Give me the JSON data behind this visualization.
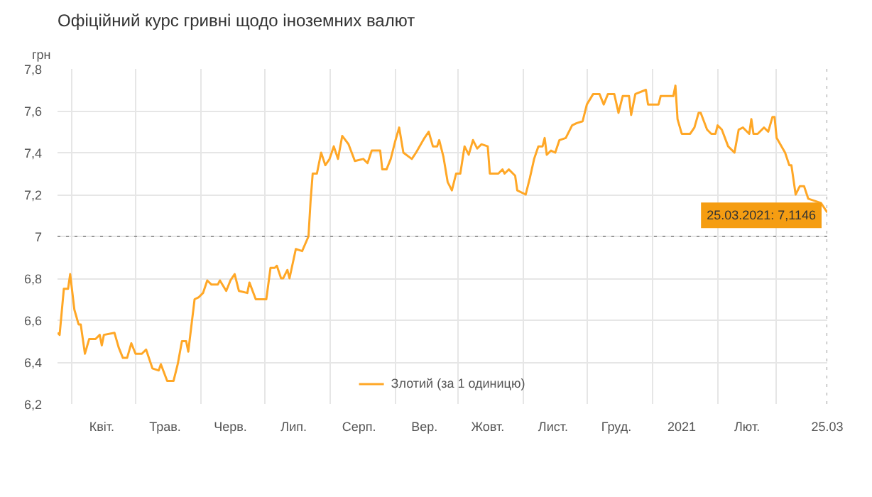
{
  "chart_data": {
    "type": "line",
    "title": "Офіційний курс гривні щодо іноземних валют",
    "ylabel": "грн",
    "x": [
      "2020-03-25",
      "2020-03-26",
      "2020-03-28",
      "2020-03-30",
      "2020-03-31",
      "2020-04-02",
      "2020-04-04",
      "2020-04-05",
      "2020-04-07",
      "2020-04-09",
      "2020-04-12",
      "2020-04-14",
      "2020-04-15",
      "2020-04-16",
      "2020-04-21",
      "2020-04-23",
      "2020-04-25",
      "2020-04-27",
      "2020-04-29",
      "2020-05-01",
      "2020-05-04",
      "2020-05-06",
      "2020-05-09",
      "2020-05-12",
      "2020-05-13",
      "2020-05-16",
      "2020-05-19",
      "2020-05-21",
      "2020-05-23",
      "2020-05-25",
      "2020-05-26",
      "2020-05-29",
      "2020-05-31",
      "2020-06-02",
      "2020-06-04",
      "2020-06-06",
      "2020-06-09",
      "2020-06-10",
      "2020-06-13",
      "2020-06-15",
      "2020-06-17",
      "2020-06-19",
      "2020-06-23",
      "2020-06-24",
      "2020-06-27",
      "2020-07-02",
      "2020-07-04",
      "2020-07-06",
      "2020-07-07",
      "2020-07-09",
      "2020-07-10",
      "2020-07-12",
      "2020-07-13",
      "2020-07-16",
      "2020-07-19",
      "2020-07-22",
      "2020-07-23",
      "2020-07-24",
      "2020-07-26",
      "2020-07-28",
      "2020-07-30",
      "2020-08-01",
      "2020-08-03",
      "2020-08-05",
      "2020-08-07",
      "2020-08-10",
      "2020-08-13",
      "2020-08-17",
      "2020-08-19",
      "2020-08-21",
      "2020-08-25",
      "2020-08-26",
      "2020-08-28",
      "2020-08-30",
      "2020-09-01",
      "2020-09-03",
      "2020-09-05",
      "2020-09-09",
      "2020-09-11",
      "2020-09-15",
      "2020-09-17",
      "2020-09-19",
      "2020-09-21",
      "2020-09-22",
      "2020-09-24",
      "2020-09-26",
      "2020-09-28",
      "2020-09-30",
      "2020-10-02",
      "2020-10-04",
      "2020-10-06",
      "2020-10-08",
      "2020-10-10",
      "2020-10-12",
      "2020-10-15",
      "2020-10-16",
      "2020-10-20",
      "2020-10-22",
      "2020-10-23",
      "2020-10-25",
      "2020-10-28",
      "2020-10-29",
      "2020-11-02",
      "2020-11-04",
      "2020-11-06",
      "2020-11-08",
      "2020-11-10",
      "2020-11-11",
      "2020-11-12",
      "2020-11-14",
      "2020-11-16",
      "2020-11-18",
      "2020-11-21",
      "2020-11-24",
      "2020-11-26",
      "2020-11-29",
      "2020-12-01",
      "2020-12-04",
      "2020-12-07",
      "2020-12-09",
      "2020-12-11",
      "2020-12-14",
      "2020-12-16",
      "2020-12-18",
      "2020-12-21",
      "2020-12-22",
      "2020-12-24",
      "2020-12-29",
      "2020-12-30",
      "2021-01-04",
      "2021-01-05",
      "2021-01-11",
      "2021-01-12",
      "2021-01-13",
      "2021-01-15",
      "2021-01-19",
      "2021-01-21",
      "2021-01-23",
      "2021-01-24",
      "2021-01-27",
      "2021-01-29",
      "2021-01-31",
      "2021-02-01",
      "2021-02-03",
      "2021-02-06",
      "2021-02-09",
      "2021-02-11",
      "2021-02-13",
      "2021-02-16",
      "2021-02-17",
      "2021-02-18",
      "2021-02-20",
      "2021-02-23",
      "2021-02-25",
      "2021-02-27",
      "2021-02-28",
      "2021-03-01",
      "2021-03-05",
      "2021-03-07",
      "2021-03-08",
      "2021-03-10",
      "2021-03-12",
      "2021-03-14",
      "2021-03-16",
      "2021-03-19",
      "2021-03-22",
      "2021-03-25"
    ],
    "series": [
      {
        "name": "Злотий (за 1 одиницю)",
        "color": "#ffa726",
        "values": [
          6.54,
          6.53,
          6.75,
          6.75,
          6.82,
          6.65,
          6.58,
          6.58,
          6.44,
          6.51,
          6.51,
          6.53,
          6.48,
          6.53,
          6.54,
          6.47,
          6.42,
          6.42,
          6.49,
          6.44,
          6.44,
          6.46,
          6.37,
          6.36,
          6.39,
          6.31,
          6.31,
          6.39,
          6.5,
          6.5,
          6.45,
          6.7,
          6.71,
          6.73,
          6.79,
          6.77,
          6.77,
          6.79,
          6.74,
          6.79,
          6.82,
          6.74,
          6.73,
          6.78,
          6.7,
          6.7,
          6.85,
          6.85,
          6.86,
          6.8,
          6.8,
          6.84,
          6.8,
          6.94,
          6.93,
          7.0,
          7.17,
          7.3,
          7.3,
          7.4,
          7.34,
          7.37,
          7.43,
          7.37,
          7.48,
          7.44,
          7.36,
          7.37,
          7.35,
          7.41,
          7.41,
          7.32,
          7.32,
          7.37,
          7.45,
          7.52,
          7.4,
          7.37,
          7.4,
          7.47,
          7.5,
          7.43,
          7.43,
          7.46,
          7.38,
          7.26,
          7.22,
          7.3,
          7.3,
          7.43,
          7.39,
          7.46,
          7.42,
          7.44,
          7.43,
          7.3,
          7.3,
          7.32,
          7.3,
          7.32,
          7.29,
          7.22,
          7.2,
          7.28,
          7.37,
          7.43,
          7.43,
          7.47,
          7.39,
          7.41,
          7.4,
          7.46,
          7.47,
          7.53,
          7.54,
          7.55,
          7.63,
          7.68,
          7.68,
          7.63,
          7.68,
          7.68,
          7.59,
          7.67,
          7.67,
          7.58,
          7.68,
          7.7,
          7.63,
          7.63,
          7.67,
          7.67,
          7.72,
          7.56,
          7.49,
          7.49,
          7.52,
          7.59,
          7.59,
          7.51,
          7.49,
          7.49,
          7.53,
          7.51,
          7.43,
          7.4,
          7.51,
          7.52,
          7.49,
          7.56,
          7.49,
          7.49,
          7.52,
          7.5,
          7.57,
          7.57,
          7.47,
          7.4,
          7.34,
          7.34,
          7.2,
          7.24,
          7.24,
          7.18,
          7.17,
          7.16,
          7.1146
        ]
      }
    ],
    "xlim": [
      "2020-03-25",
      "2021-03-25"
    ],
    "xticks": [
      {
        "value": "2020-04-01",
        "label": null
      },
      {
        "value": "2020-04-15",
        "label": "Квіт."
      },
      {
        "value": "2020-05-01",
        "label": null
      },
      {
        "value": "2020-05-15",
        "label": "Трав."
      },
      {
        "value": "2020-06-01",
        "label": null
      },
      {
        "value": "2020-06-15",
        "label": "Черв."
      },
      {
        "value": "2020-07-01",
        "label": null
      },
      {
        "value": "2020-07-15",
        "label": "Лип."
      },
      {
        "value": "2020-08-01",
        "label": null
      },
      {
        "value": "2020-08-15",
        "label": "Серп."
      },
      {
        "value": "2020-09-01",
        "label": null
      },
      {
        "value": "2020-09-15",
        "label": "Вер."
      },
      {
        "value": "2020-10-01",
        "label": null
      },
      {
        "value": "2020-10-15",
        "label": "Жовт."
      },
      {
        "value": "2020-11-01",
        "label": null
      },
      {
        "value": "2020-11-15",
        "label": "Лист."
      },
      {
        "value": "2020-12-01",
        "label": null
      },
      {
        "value": "2020-12-15",
        "label": "Груд."
      },
      {
        "value": "2021-01-01",
        "label": null
      },
      {
        "value": "2021-01-15",
        "label": "2021"
      },
      {
        "value": "2021-02-01",
        "label": null
      },
      {
        "value": "2021-02-15",
        "label": "Лют."
      },
      {
        "value": "2021-03-01",
        "label": null
      },
      {
        "value": "2021-03-25",
        "label": "25.03"
      }
    ],
    "ylim": [
      6.2,
      7.8
    ],
    "yticks": [
      {
        "value": 6.2,
        "label": "6,2"
      },
      {
        "value": 6.4,
        "label": "6,4"
      },
      {
        "value": 6.6,
        "label": "6,6"
      },
      {
        "value": 6.8,
        "label": "6,8"
      },
      {
        "value": 7,
        "label": "7"
      },
      {
        "value": 7.2,
        "label": "7,2"
      },
      {
        "value": 7.4,
        "label": "7,4"
      },
      {
        "value": 7.6,
        "label": "7,6"
      },
      {
        "value": 7.8,
        "label": "7,8"
      }
    ],
    "ref_lines": [
      {
        "axis": "y",
        "value": 7,
        "line_style": "dotted"
      },
      {
        "axis": "x",
        "value": "2021-03-25",
        "line_style": "dotted"
      }
    ],
    "annotations": [
      {
        "text": "25.03.2021: 7,1146",
        "x": "2021-03-25",
        "y": 7.1146
      }
    ],
    "grid": true,
    "legend": "bottom",
    "marker": "none",
    "line_style": "solid"
  }
}
